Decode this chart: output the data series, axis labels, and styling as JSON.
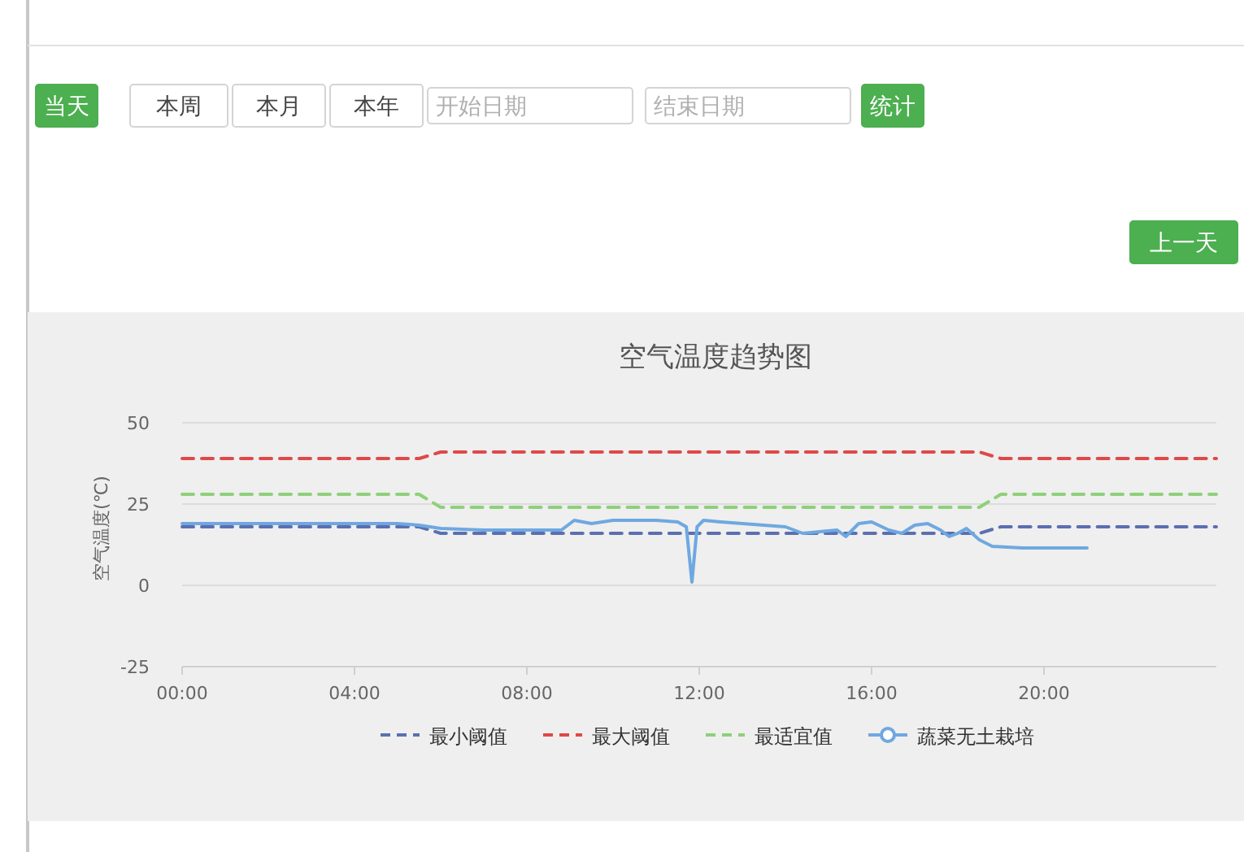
{
  "chart_data": {
    "type": "line",
    "title": "空气温度趋势图",
    "ylabel": "空气温度(℃)",
    "annotations": [
      "当天",
      "本周",
      "本月",
      "本年",
      "开始日期",
      "结束日期",
      "统计",
      "上一天"
    ],
    "xlim": [
      0,
      24
    ],
    "xticks": [
      {
        "value": 0,
        "label": "00:00"
      },
      {
        "value": 4,
        "label": "04:00"
      },
      {
        "value": 8,
        "label": "08:00"
      },
      {
        "value": 12,
        "label": "12:00"
      },
      {
        "value": 16,
        "label": "16:00"
      },
      {
        "value": 20,
        "label": "20:00"
      }
    ],
    "ylim": [
      -25,
      50
    ],
    "yticks": [
      -25,
      0,
      25,
      50
    ],
    "grid": "y",
    "legend": "bottom",
    "series": [
      {
        "name": "最小阈值",
        "color": "#5b6fb0",
        "line_style": "dashed",
        "x": [
          0,
          5.5,
          6,
          18.5,
          19,
          24
        ],
        "values": [
          18,
          18,
          16,
          16,
          18,
          18
        ]
      },
      {
        "name": "最大阈值",
        "color": "#e04848",
        "line_style": "dashed",
        "x": [
          0,
          5.5,
          6,
          18.5,
          19,
          24
        ],
        "values": [
          39,
          39,
          41,
          41,
          39,
          39
        ]
      },
      {
        "name": "最适宜值",
        "color": "#8fd07a",
        "line_style": "dashed",
        "x": [
          0,
          5.5,
          6,
          18.5,
          19,
          24
        ],
        "values": [
          28,
          28,
          24,
          24,
          28,
          28
        ]
      },
      {
        "name": "蔬菜无土栽培",
        "color": "#6fa8e0",
        "line_style": "solid",
        "x": [
          0,
          1,
          2,
          3,
          4,
          5,
          5.5,
          6,
          7,
          8,
          8.8,
          9.1,
          9.5,
          10,
          10.5,
          11,
          11.5,
          11.7,
          11.83,
          11.95,
          12.1,
          12.5,
          13,
          13.5,
          14,
          14.4,
          14.8,
          15.2,
          15.4,
          15.7,
          16,
          16.4,
          16.7,
          17,
          17.3,
          17.6,
          17.8,
          18,
          18.2,
          18.5,
          18.8,
          19.5,
          20,
          20.5,
          21
        ],
        "values": [
          19,
          19,
          19,
          19,
          19,
          19,
          18.5,
          17.5,
          17,
          17,
          17,
          20,
          19,
          20,
          20,
          20,
          19.5,
          18,
          1,
          18,
          20,
          19.5,
          19,
          18.5,
          18,
          16,
          16.5,
          17,
          15,
          19,
          19.5,
          17,
          16,
          18.5,
          19,
          17,
          15,
          16,
          17.5,
          14,
          12,
          11.5,
          11.5,
          11.5,
          11.5
        ]
      }
    ]
  }
}
